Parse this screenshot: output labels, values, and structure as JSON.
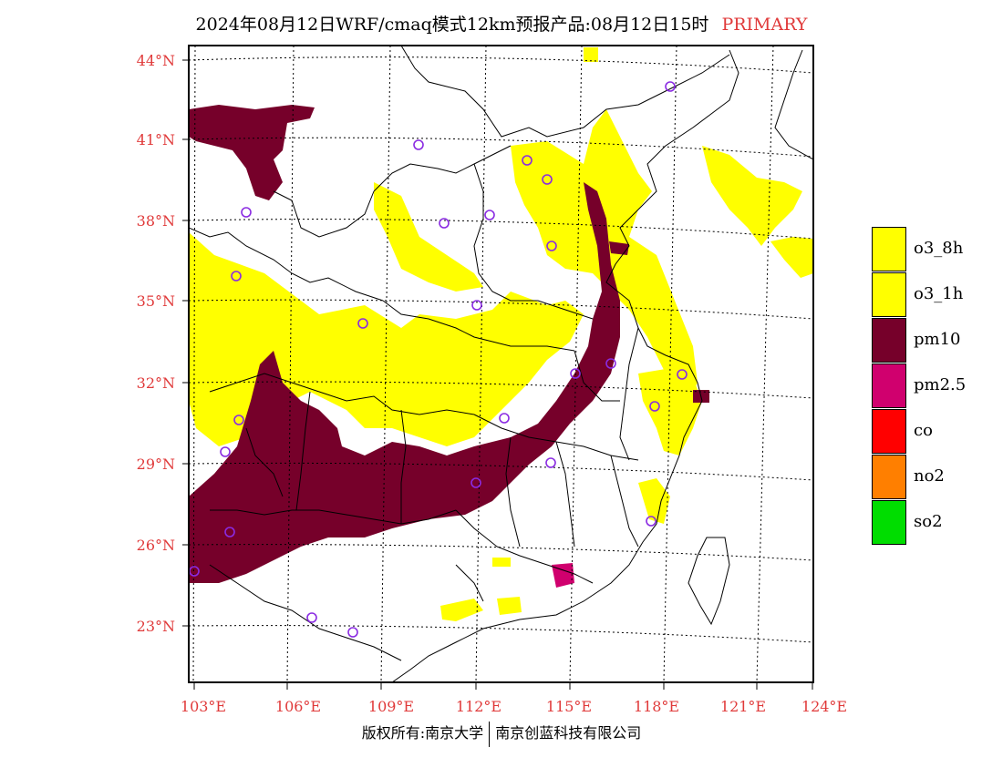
{
  "header": {
    "title": "2024年08月12日WRF/cmaq模式12km预报产品:08月12日15时",
    "tag": "PRIMARY",
    "tag_color": "#e03a3a"
  },
  "map": {
    "lat_labels": [
      "44°N",
      "41°N",
      "38°N",
      "35°N",
      "32°N",
      "29°N",
      "26°N",
      "23°N"
    ],
    "lon_labels": [
      "103°E",
      "106°E",
      "109°E",
      "112°E",
      "115°E",
      "118°E",
      "121°E",
      "124°E"
    ],
    "colors": {
      "o3": "#ffff00",
      "pm10": "#76002a",
      "pm25": "#d0006e",
      "station_ring": "#8a2be2"
    }
  },
  "legend": [
    {
      "label": "o3_8h",
      "color": "#ffff00"
    },
    {
      "label": "o3_1h",
      "color": "#ffff00"
    },
    {
      "label": "pm10",
      "color": "#76002a"
    },
    {
      "label": "pm2.5",
      "color": "#d0006e"
    },
    {
      "label": "co",
      "color": "#ff0000"
    },
    {
      "label": "no2",
      "color": "#ff7f00"
    },
    {
      "label": "so2",
      "color": "#00dd00"
    }
  ],
  "footer": {
    "left": "版权所有:南京大学",
    "right": "南京创蓝科技有限公司"
  }
}
